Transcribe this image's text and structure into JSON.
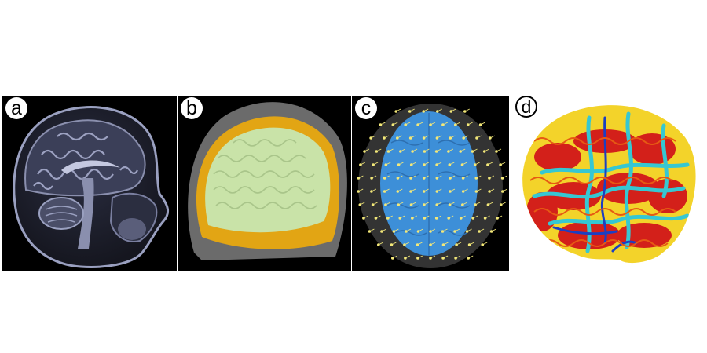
{
  "figure": {
    "panels": [
      {
        "label": "a"
      },
      {
        "label": "b"
      },
      {
        "label": "c"
      },
      {
        "label": "d"
      }
    ]
  },
  "colors": {
    "page_background": "#ffffff",
    "panel_background": "#000000",
    "mri_tissue": "#8a8fae",
    "scalp_shell": "#6b6b6b",
    "skull_layer": "#e2a514",
    "brain_surface": "#c9e3a8",
    "sensor_points": "#f3e879",
    "cortex_blue": "#3d8fd8",
    "curvature_red": "#d3201a",
    "curvature_yellow": "#f3d32a",
    "curvature_cyan": "#36c7d2"
  }
}
